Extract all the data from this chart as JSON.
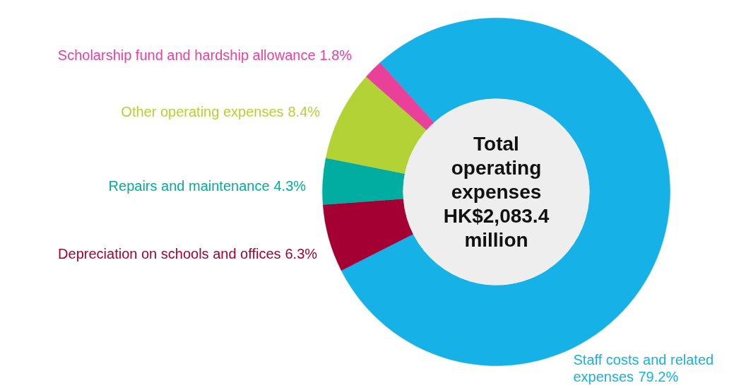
{
  "chart_data": {
    "type": "donut",
    "title": "Total operating expenses HK$2,083.4 million",
    "categories": [
      "Staff costs and related expenses",
      "Depreciation on schools and offices",
      "Repairs and maintenance",
      "Other operating expenses",
      "Scholarship fund and hardship allowance"
    ],
    "values": [
      79.2,
      6.3,
      4.3,
      8.4,
      1.8
    ],
    "colors": [
      "#16b1e6",
      "#a50034",
      "#00ada0",
      "#b2d235",
      "#e9409a"
    ],
    "value_labels": [
      "79.2%",
      "6.3%",
      "4.3%",
      "8.4%",
      "1.8%"
    ]
  }
}
